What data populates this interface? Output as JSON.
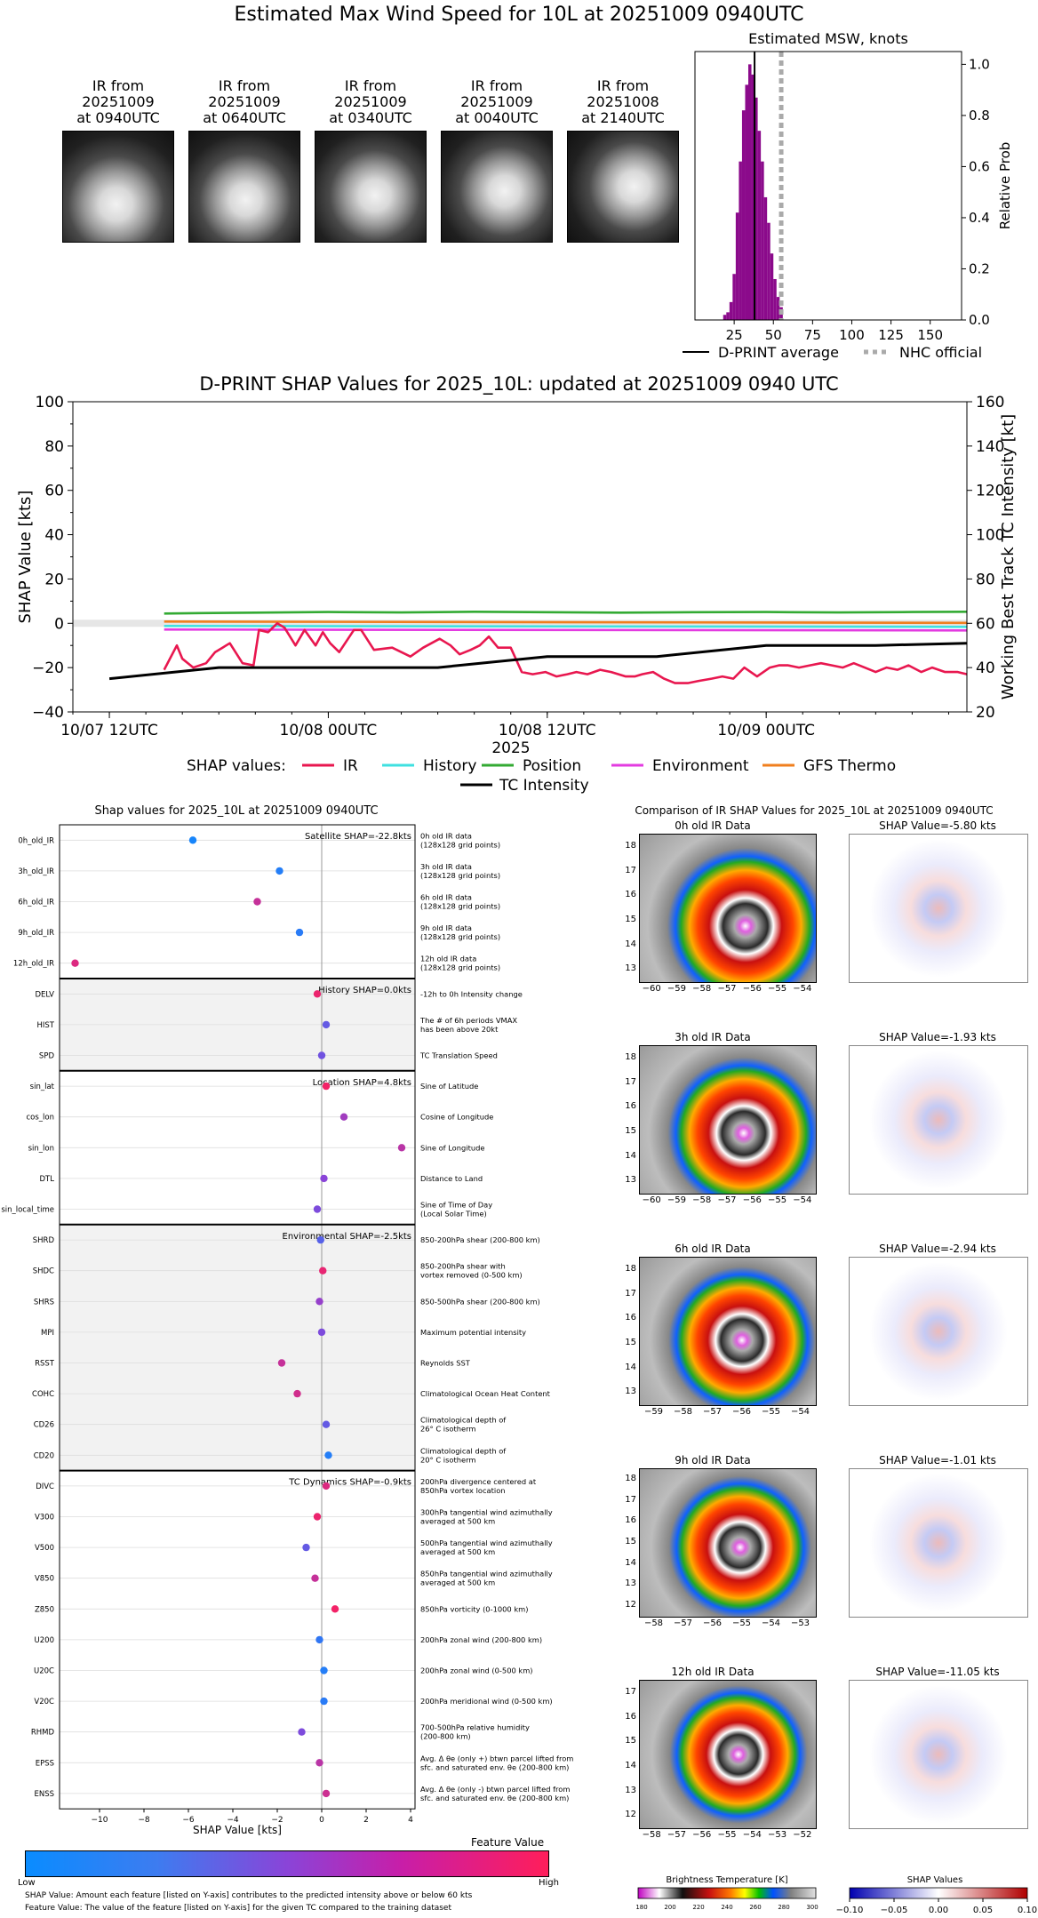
{
  "header": {
    "title": "Estimated Max Wind Speed for 10L at 20251009 0940UTC",
    "thumbs": [
      {
        "l1": "IR from",
        "l2": "20251009",
        "l3": "at 0940UTC"
      },
      {
        "l1": "IR from",
        "l2": "20251009",
        "l3": "at 0640UTC"
      },
      {
        "l1": "IR from",
        "l2": "20251009",
        "l3": "at 0340UTC"
      },
      {
        "l1": "IR from",
        "l2": "20251009",
        "l3": "at 0040UTC"
      },
      {
        "l1": "IR from",
        "l2": "20251008",
        "l3": "at 2140UTC"
      }
    ]
  },
  "colors": {
    "IR": "#e8174f",
    "History": "#3fe0e0",
    "Position": "#33aa33",
    "Environment": "#e33be0",
    "GFS_Thermo": "#f07f1e",
    "TC": "#000000",
    "hist": "#8b0a8b",
    "nhc": "#aaaaaa",
    "low": "#1e90ff",
    "high": "#ff1e5a"
  },
  "chart_data": [
    {
      "type": "bar",
      "title": "Estimated MSW, knots",
      "ylabel": "Relative Prob",
      "xlim": [
        0,
        170
      ],
      "ylim": [
        0,
        1.05
      ],
      "xticks": [
        "25",
        "50",
        "75",
        "100",
        "125",
        "150"
      ],
      "yticks": [
        "0.0",
        "0.2",
        "0.4",
        "0.6",
        "0.8",
        "1.0"
      ],
      "bin_centers": [
        19,
        21,
        23,
        25,
        27,
        29,
        31,
        33,
        35,
        37,
        39,
        41,
        43,
        45,
        47,
        49,
        51,
        53,
        55
      ],
      "values": [
        0.02,
        0.03,
        0.07,
        0.18,
        0.42,
        0.62,
        0.82,
        0.92,
        1.0,
        0.96,
        0.87,
        0.74,
        0.62,
        0.48,
        0.38,
        0.26,
        0.16,
        0.09,
        0.05
      ],
      "dprint_average": 38,
      "nhc_official": 55,
      "legend": [
        {
          "label": "D-PRINT average"
        },
        {
          "label": "NHC official"
        }
      ]
    },
    {
      "type": "line",
      "title": "D-PRINT SHAP Values for 2025_10L: updated at 20251009 0940 UTC",
      "ylabel": "SHAP Value [kts]",
      "y2label": "Working Best Track TC Intensity [kt]",
      "xlabel": "2025",
      "ylim": [
        -40,
        100
      ],
      "y2lim": [
        20,
        160
      ],
      "yticks": [
        "−40",
        "−20",
        "0",
        "20",
        "40",
        "60",
        "80",
        "100"
      ],
      "y2ticks": [
        "20",
        "40",
        "60",
        "80",
        "100",
        "120",
        "140",
        "160"
      ],
      "xticks": [
        "10/07 12UTC",
        "10/08 00UTC",
        "10/08 12UTC",
        "10/09 00UTC"
      ],
      "x_hours": [
        0,
        12,
        24,
        36
      ],
      "xlim_hours": [
        -2,
        47
      ],
      "legend_label": "SHAP values:",
      "series": [
        {
          "name": "IR",
          "x": [
            3,
            3.7,
            4,
            4.6,
            5.3,
            5.8,
            6.2,
            6.6,
            7.3,
            7.9,
            8.2,
            8.7,
            9.2,
            9.6,
            10.2,
            10.7,
            11.3,
            11.7,
            12.1,
            12.6,
            13.4,
            13.8,
            14.5,
            15.5,
            16.5,
            17.2,
            18.1,
            18.7,
            19.2,
            19.8,
            20.3,
            20.8,
            21.3,
            22,
            22.6,
            23.2,
            23.9,
            24.5,
            25.1,
            25.6,
            26.2,
            26.9,
            27.5,
            28.3,
            28.8,
            29.2,
            29.8,
            30.4,
            31,
            31.7,
            32.3,
            33,
            33.6,
            34.2,
            34.8,
            35.5,
            36.2,
            36.7,
            37.2,
            37.8,
            38.4,
            39,
            39.6,
            40.2,
            40.8,
            41.4,
            42,
            42.6,
            43.2,
            43.8,
            44.5,
            45.1,
            45.8,
            46.5,
            47
          ],
          "values": [
            -21,
            -10,
            -16,
            -20,
            -18,
            -13,
            -11,
            -9,
            -18,
            -19,
            -3,
            -4,
            0,
            -2,
            -10,
            -3,
            -10,
            -4,
            -9,
            -13,
            -3,
            -3,
            -12,
            -11,
            -15,
            -11,
            -7,
            -10,
            -14,
            -12,
            -10,
            -6,
            -11,
            -11,
            -22,
            -23,
            -22,
            -24,
            -23,
            -22,
            -23,
            -21,
            -22,
            -24,
            -24,
            -23,
            -22,
            -25,
            -27,
            -27,
            -26,
            -25,
            -24,
            -25,
            -20,
            -24,
            -20,
            -19,
            -19,
            -20,
            -19,
            -18,
            -19,
            -20,
            -18,
            -20,
            -22,
            -20,
            -21,
            -19,
            -22,
            -20,
            -22,
            -22,
            -23
          ]
        },
        {
          "name": "History",
          "x": [
            3,
            47
          ],
          "values": [
            -1.2,
            -1.6
          ]
        },
        {
          "name": "Position",
          "x": [
            3,
            5,
            8,
            12,
            16,
            20,
            24,
            28,
            32,
            36,
            40,
            44,
            47
          ],
          "values": [
            4.4,
            4.6,
            4.8,
            5.1,
            4.9,
            5.2,
            5.0,
            4.8,
            5.0,
            5.1,
            4.9,
            5.1,
            5.2
          ]
        },
        {
          "name": "Environment",
          "x": [
            3,
            47
          ],
          "values": [
            -2.8,
            -3.2
          ]
        },
        {
          "name": "GFS Thermo",
          "x": [
            3,
            47
          ],
          "values": [
            0.8,
            0.2
          ]
        },
        {
          "name": "TC Intensity",
          "axis": "right",
          "x": [
            0,
            6,
            12,
            18,
            24,
            30,
            36,
            42,
            47
          ],
          "values": [
            35,
            40,
            40,
            40,
            45,
            45,
            50,
            50,
            51
          ]
        }
      ]
    },
    {
      "type": "scatter",
      "title": "Shap values for 2025_10L at 20251009 0940UTC",
      "xlabel": "SHAP Value [kts]",
      "xlim": [
        -11.8,
        4.2
      ],
      "xticks": [
        "−10",
        "−8",
        "−6",
        "−4",
        "−2",
        "0",
        "2",
        "4"
      ],
      "xtick_values": [
        -10,
        -8,
        -6,
        -4,
        -2,
        0,
        2,
        4
      ],
      "groups": [
        {
          "label": "Satellite SHAP=-22.8kts",
          "start": 0,
          "count": 5
        },
        {
          "label": "History SHAP=0.0kts",
          "start": 5,
          "count": 3
        },
        {
          "label": "Location SHAP=4.8kts",
          "start": 8,
          "count": 5
        },
        {
          "label": "Environmental SHAP=-2.5kts",
          "start": 13,
          "count": 8
        },
        {
          "label": "TC Dynamics SHAP=-0.9kts",
          "start": 21,
          "count": 11
        }
      ],
      "features": [
        {
          "name": "0h_old_IR",
          "desc": [
            "0h old IR data",
            "(128x128 grid points)"
          ],
          "shap": -5.8,
          "fv": 0.05
        },
        {
          "name": "3h_old_IR",
          "desc": [
            "3h old IR data",
            "(128x128 grid points)"
          ],
          "shap": -1.9,
          "fv": 0.1
        },
        {
          "name": "6h_old_IR",
          "desc": [
            "6h old IR data",
            "(128x128 grid points)"
          ],
          "shap": -2.9,
          "fv": 0.75
        },
        {
          "name": "9h_old_IR",
          "desc": [
            "9h old IR data",
            "(128x128 grid points)"
          ],
          "shap": -1.0,
          "fv": 0.12
        },
        {
          "name": "12h_old_IR",
          "desc": [
            "12h old IR data",
            "(128x128 grid points)"
          ],
          "shap": -11.1,
          "fv": 0.85
        },
        {
          "name": "DELV",
          "desc": [
            "-12h to 0h Intensity change"
          ],
          "shap": -0.2,
          "fv": 0.92
        },
        {
          "name": "HIST",
          "desc": [
            "The # of 6h periods VMAX",
            "has been above 20kt"
          ],
          "shap": 0.2,
          "fv": 0.35
        },
        {
          "name": "SPD",
          "desc": [
            "TC Translation Speed"
          ],
          "shap": 0.0,
          "fv": 0.4
        },
        {
          "name": "sin_lat",
          "desc": [
            "Sine of Latitude"
          ],
          "shap": 0.2,
          "fv": 0.95
        },
        {
          "name": "cos_lon",
          "desc": [
            "Cosine of Longitude"
          ],
          "shap": 1.0,
          "fv": 0.6
        },
        {
          "name": "sin_lon",
          "desc": [
            "Sine of Longitude"
          ],
          "shap": 3.6,
          "fv": 0.7
        },
        {
          "name": "DTL",
          "desc": [
            "Distance to Land"
          ],
          "shap": 0.1,
          "fv": 0.5
        },
        {
          "name": "sin_local_time",
          "desc": [
            "Sine of Time of Day",
            "(Local Solar Time)"
          ],
          "shap": -0.2,
          "fv": 0.45
        },
        {
          "name": "SHRD",
          "desc": [
            "850-200hPa shear (200-800 km)"
          ],
          "shap": -0.05,
          "fv": 0.3
        },
        {
          "name": "SHDC",
          "desc": [
            "850-200hPa shear with",
            "vortex removed (0-500 km)"
          ],
          "shap": 0.05,
          "fv": 0.9
        },
        {
          "name": "SHRS",
          "desc": [
            "850-500hPa shear (200-800 km)"
          ],
          "shap": -0.1,
          "fv": 0.55
        },
        {
          "name": "MPI",
          "desc": [
            "Maximum potential intensity"
          ],
          "shap": 0.0,
          "fv": 0.45
        },
        {
          "name": "RSST",
          "desc": [
            "Reynolds SST"
          ],
          "shap": -1.8,
          "fv": 0.75
        },
        {
          "name": "COHC",
          "desc": [
            "Climatological Ocean Heat Content"
          ],
          "shap": -1.1,
          "fv": 0.8
        },
        {
          "name": "CD26",
          "desc": [
            "Climatological depth of",
            "26° C isotherm"
          ],
          "shap": 0.2,
          "fv": 0.35
        },
        {
          "name": "CD20",
          "desc": [
            "Climatological depth of",
            "20° C isotherm"
          ],
          "shap": 0.3,
          "fv": 0.1
        },
        {
          "name": "DIVC",
          "desc": [
            "200hPa divergence centered at",
            "850hPa vortex location"
          ],
          "shap": 0.2,
          "fv": 0.85
        },
        {
          "name": "V300",
          "desc": [
            "300hPa tangential wind azimuthally",
            "averaged at 500 km"
          ],
          "shap": -0.2,
          "fv": 0.92
        },
        {
          "name": "V500",
          "desc": [
            "500hPa tangential wind azimuthally",
            "averaged at 500 km"
          ],
          "shap": -0.7,
          "fv": 0.35
        },
        {
          "name": "V850",
          "desc": [
            "850hPa tangential wind azimuthally",
            "averaged at 500 km"
          ],
          "shap": -0.3,
          "fv": 0.75
        },
        {
          "name": "Z850",
          "desc": [
            "850hPa vorticity (0-1000 km)"
          ],
          "shap": 0.6,
          "fv": 0.95
        },
        {
          "name": "U200",
          "desc": [
            "200hPa zonal wind (200-800 km)"
          ],
          "shap": -0.1,
          "fv": 0.15
        },
        {
          "name": "U20C",
          "desc": [
            "200hPa zonal wind (0-500 km)"
          ],
          "shap": 0.1,
          "fv": 0.1
        },
        {
          "name": "V20C",
          "desc": [
            "200hPa meridional wind (0-500 km)"
          ],
          "shap": 0.1,
          "fv": 0.12
        },
        {
          "name": "RHMD",
          "desc": [
            "700-500hPa relative humidity",
            "(200-800 km)"
          ],
          "shap": -0.9,
          "fv": 0.45
        },
        {
          "name": "EPSS",
          "desc": [
            "Avg. Δ θe (only +) btwn parcel lifted from",
            "sfc. and saturated env. θe (200-800 km)"
          ],
          "shap": -0.1,
          "fv": 0.7
        },
        {
          "name": "ENSS",
          "desc": [
            "Avg. Δ θe (only -) btwn parcel lifted from",
            "sfc. and saturated env. θe (200-800 km)"
          ],
          "shap": 0.2,
          "fv": 0.78
        }
      ]
    }
  ],
  "colorbar": {
    "title": "Feature Value",
    "low": "Low",
    "high": "High"
  },
  "notes": [
    "SHAP Value: Amount each feature [listed on Y-axis] contributes to the predicted intensity above or below 60 kts",
    "Feature Value: The value of the feature [listed on Y-axis] for the given TC compared to the training dataset"
  ],
  "comparison": {
    "title": "Comparison of IR SHAP Values for 2025_10L at 20251009 0940UTC",
    "rows": [
      {
        "ir_title": "0h old IR Data",
        "shap_title": "SHAP Value=-5.80 kts",
        "yticks": [
          "13",
          "14",
          "15",
          "16",
          "17",
          "18"
        ],
        "xticks": [
          "−60",
          "−59",
          "−58",
          "−57",
          "−56",
          "−55",
          "−54"
        ]
      },
      {
        "ir_title": "3h old IR Data",
        "shap_title": "SHAP Value=-1.93 kts",
        "yticks": [
          "13",
          "14",
          "15",
          "16",
          "17",
          "18"
        ],
        "xticks": [
          "−60",
          "−59",
          "−58",
          "−57",
          "−56",
          "−55",
          "−54"
        ]
      },
      {
        "ir_title": "6h old IR Data",
        "shap_title": "SHAP Value=-2.94 kts",
        "yticks": [
          "13",
          "14",
          "15",
          "16",
          "17",
          "18"
        ],
        "xticks": [
          "−59",
          "−58",
          "−57",
          "−56",
          "−55",
          "−54"
        ]
      },
      {
        "ir_title": "9h old IR Data",
        "shap_title": "SHAP Value=-1.01 kts",
        "yticks": [
          "12",
          "13",
          "14",
          "15",
          "16",
          "17",
          "18"
        ],
        "xticks": [
          "−58",
          "−57",
          "−56",
          "−55",
          "−54",
          "−53"
        ]
      },
      {
        "ir_title": "12h old IR Data",
        "shap_title": "SHAP Value=-11.05 kts",
        "yticks": [
          "12",
          "13",
          "14",
          "15",
          "16",
          "17"
        ],
        "xticks": [
          "−58",
          "−57",
          "−56",
          "−55",
          "−54",
          "−53",
          "−52"
        ]
      }
    ],
    "bt_title": "Brightness Temperature [K]",
    "bt_ticks": [
      "180",
      "200",
      "220",
      "240",
      "260",
      "280",
      "300"
    ],
    "sv_title": "SHAP Values",
    "sv_ticks": [
      "−0.10",
      "−0.05",
      "0.00",
      "0.05",
      "0.10"
    ]
  }
}
